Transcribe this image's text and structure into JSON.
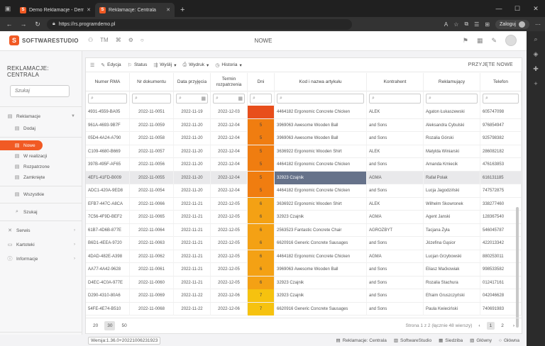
{
  "browser": {
    "tabs": [
      {
        "title": "Demo Reklamacje - Demo on lin",
        "active": false
      },
      {
        "title": "Reklamacje: Centrala",
        "active": true
      }
    ],
    "url": "https://rs.programdemo.pl",
    "login_label": "Zaloguj"
  },
  "app": {
    "logo_text": "SOFTWARESTUDIO",
    "logo_letter": "S",
    "top_title": "NOWE",
    "tm_label": "TM"
  },
  "sidebar": {
    "title": "REKLAMACJE: CENTRALA",
    "search_placeholder": "Szukaj",
    "items": [
      {
        "label": "Reklamacje",
        "icon": "document-icon"
      },
      {
        "label": "Dodaj",
        "icon": "document-add-icon"
      },
      {
        "label": "Nowe",
        "icon": "document-icon"
      },
      {
        "label": "W realizacji",
        "icon": "document-icon"
      },
      {
        "label": "Rozpatrzone",
        "icon": "document-icon"
      },
      {
        "label": "Zamknięte",
        "icon": "document-icon"
      },
      {
        "label": "Wszystkie",
        "icon": "document-icon"
      },
      {
        "label": "Szukaj",
        "icon": "search-icon"
      },
      {
        "label": "Serwis",
        "icon": "wrench-icon"
      },
      {
        "label": "Kartoteki",
        "icon": "folder-icon"
      },
      {
        "label": "Informacje",
        "icon": "info-icon"
      }
    ]
  },
  "toolbar": {
    "edit": "Edycja",
    "status": "Status",
    "send": "Wyślij",
    "print": "Wydruk",
    "history": "Historia",
    "state": "PRZYJĘTE NOWE"
  },
  "columns": [
    "Numer RMA",
    "Nr dokumentu",
    "Data przyjęcia",
    "Termin rozpatrzenia",
    "Dni",
    "Kod i nazwa artykułu",
    "Kontrahent",
    "Reklamujący",
    "Telefon"
  ],
  "rows": [
    {
      "rma": "4931-4559-BA05",
      "doc": "2022-11-0051",
      "date": "2022-11-19",
      "due": "2022-12-03",
      "days": "",
      "art": "4464182 Ergonomic Concrete Chicken",
      "k": "ALEK",
      "r": "Agaton Łukaszewski",
      "t": "605747098",
      "color": "#e84e1b"
    },
    {
      "rma": "961A-4693-9B7F",
      "doc": "2022-11-0059",
      "date": "2022-11-20",
      "due": "2022-12-04",
      "days": "5",
      "art": "3969063 Awesome Wooden Ball",
      "k": "and Sons",
      "r": "Aleksandra Cybulski",
      "t": "976854947",
      "color": "#f07d10"
    },
    {
      "rma": "05D4-4A24-A790",
      "doc": "2022-11-0058",
      "date": "2022-11-20",
      "due": "2022-12-04",
      "days": "5",
      "art": "3969063 Awesome Wooden Ball",
      "k": "and Sons",
      "r": "Rozalia Górski",
      "t": "925798382",
      "color": "#f07d10"
    },
    {
      "rma": "C109-4680-B669",
      "doc": "2022-11-0057",
      "date": "2022-11-20",
      "due": "2022-12-04",
      "days": "5",
      "art": "3636922 Ergonomic Wooden Shirt",
      "k": "ALEK",
      "r": "Matylda Winiarski",
      "t": "286082182",
      "color": "#f07d10"
    },
    {
      "rma": "397B-495F-AF65",
      "doc": "2022-11-0056",
      "date": "2022-11-20",
      "due": "2022-12-04",
      "days": "5",
      "art": "4464182 Ergonomic Concrete Chicken",
      "k": "and Sons",
      "r": "Amanda Kmiecik",
      "t": "476163853",
      "color": "#f07d10"
    },
    {
      "rma": "4EF1-41FD-B009",
      "doc": "2022-11-0055",
      "date": "2022-11-20",
      "due": "2022-12-04",
      "days": "5",
      "art": "32923 Czajnik",
      "k": "AGMA",
      "r": "Rafał Polak",
      "t": "616131185",
      "color": "#f07d10",
      "sel": true
    },
    {
      "rma": "ADC1-420A-9ED8",
      "doc": "2022-11-0054",
      "date": "2022-11-20",
      "due": "2022-12-04",
      "days": "5",
      "art": "4464182 Ergonomic Concrete Chicken",
      "k": "and Sons",
      "r": "Lucja Jagodziński",
      "t": "747572875",
      "color": "#f07d10"
    },
    {
      "rma": "EFB7-447C-A8CA",
      "doc": "2022-11-0066",
      "date": "2022-11-21",
      "due": "2022-12-05",
      "days": "6",
      "art": "3636922 Ergonomic Wooden Shirt",
      "k": "ALEK",
      "r": "Wilhelm Skowronek",
      "t": "338277460",
      "color": "#f4a114"
    },
    {
      "rma": "7C56-4F9D-BEF2",
      "doc": "2022-11-0065",
      "date": "2022-11-21",
      "due": "2022-12-05",
      "days": "6",
      "art": "32923 Czajnik",
      "k": "AGMA",
      "r": "Agent Janski",
      "t": "128367540",
      "color": "#f4a114"
    },
    {
      "rma": "61B7-4D6B-877E",
      "doc": "2022-11-0064",
      "date": "2022-11-21",
      "due": "2022-12-05",
      "days": "6",
      "art": "2563523 Fantastic Concrete Chair",
      "k": "AGROZBYT",
      "r": "Tacjana Żyła",
      "t": "546045787",
      "color": "#f4a114"
    },
    {
      "rma": "B6D1-4EEA-9720",
      "doc": "2022-11-0063",
      "date": "2022-11-21",
      "due": "2022-12-05",
      "days": "6",
      "art": "6620916 Generic Concrete Sausages",
      "k": "and Sons",
      "r": "Józefina Gąsior",
      "t": "422013342",
      "color": "#f4a114"
    },
    {
      "rma": "4DAD-482E-A398",
      "doc": "2022-11-0062",
      "date": "2022-11-21",
      "due": "2022-12-05",
      "days": "6",
      "art": "4464182 Ergonomic Concrete Chicken",
      "k": "AGMA",
      "r": "Lucjan Grzybowski",
      "t": "880253011",
      "color": "#f4a114"
    },
    {
      "rma": "AA77-4A42-9628",
      "doc": "2022-11-0061",
      "date": "2022-11-21",
      "due": "2022-12-05",
      "days": "6",
      "art": "3969063 Awesome Wooden Ball",
      "k": "and Sons",
      "r": "Eliasz Maćkowiak",
      "t": "998533582",
      "color": "#f4a114"
    },
    {
      "rma": "D4EC-4C0A-977E",
      "doc": "2022-11-0060",
      "date": "2022-11-21",
      "due": "2022-12-05",
      "days": "6",
      "art": "32923 Czajnik",
      "k": "and Sons",
      "r": "Rozalia Stachura",
      "t": "012417161",
      "color": "#f4a114"
    },
    {
      "rma": "D290-4310-80A6",
      "doc": "2022-11-0069",
      "date": "2022-11-22",
      "due": "2022-12-06",
      "days": "7",
      "art": "32923 Czajnik",
      "k": "and Sons",
      "r": "Efraim Gruszczyński",
      "t": "042046628",
      "color": "#f6c20f"
    },
    {
      "rma": "54FE-4E74-B510",
      "doc": "2022-11-0068",
      "date": "2022-11-22",
      "due": "2022-12-06",
      "days": "7",
      "art": "6620916 Generic Concrete Sausages",
      "k": "and Sons",
      "r": "Paula Kwieciński",
      "t": "740691983",
      "color": "#f6c20f"
    }
  ],
  "footer": {
    "page_sizes": [
      "20",
      "30",
      "50"
    ],
    "active_size": "30",
    "page_info": "Strona 1 z 2 (łącznie 48 wierszy)",
    "pages": [
      "1",
      "2"
    ],
    "active_page": "1"
  },
  "statusbar": {
    "version": "Wersja:1.36.0+20221006231923",
    "items": [
      "Reklamacje: Centrala",
      "SoftwareStudio",
      "Siedziba",
      "Główny",
      "Główna"
    ]
  }
}
